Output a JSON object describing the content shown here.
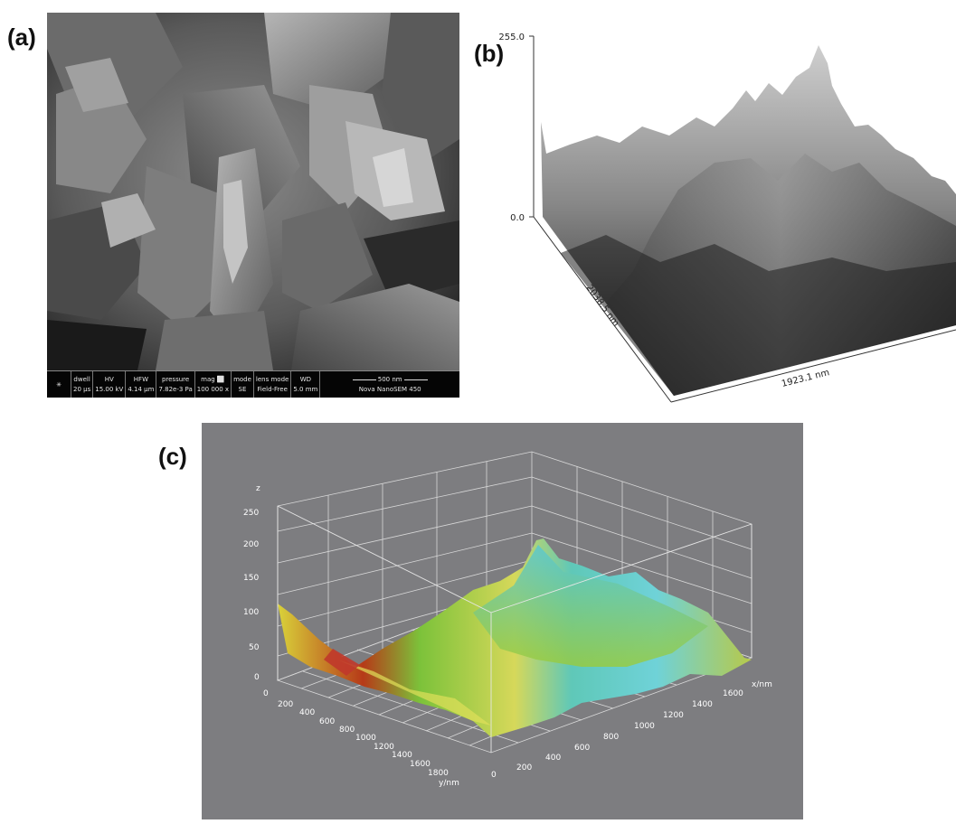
{
  "panels": {
    "a": {
      "label": "(a)"
    },
    "b": {
      "label": "(b)"
    },
    "c": {
      "label": "(c)"
    }
  },
  "sem_info": {
    "dwell_label": "dwell",
    "dwell_value": "20 µs",
    "hv_label": "HV",
    "hv_value": "15.00 kV",
    "hfw_label": "HFW",
    "hfw_value": "4.14 µm",
    "pressure_label": "pressure",
    "pressure_value": "7.82e-3 Pa",
    "mag_label": "mag ⬜",
    "mag_value": "100 000 x",
    "mode_label": "mode",
    "mode_value": "SE",
    "lens_label": "lens mode",
    "lens_value": "Field-Free",
    "wd_label": "WD",
    "wd_value": "5.0 mm",
    "scale_label": "500 nm",
    "instrument": "Nova NanoSEM 450"
  },
  "panel_b": {
    "z_max": "255.0",
    "z_min": "0.0",
    "y_axis_label": "2038.5 nm",
    "x_axis_label": "1923.1 nm"
  },
  "panel_c": {
    "z_label": "z",
    "z_ticks": [
      "0",
      "50",
      "100",
      "150",
      "200",
      "250"
    ],
    "y_ticks": [
      "0",
      "200",
      "400",
      "600",
      "800",
      "1000",
      "1200",
      "1400",
      "1600",
      "1800"
    ],
    "y_label": "y/nm",
    "x_ticks": [
      "0",
      "200",
      "400",
      "600",
      "800",
      "1000",
      "1200",
      "1400",
      "1600"
    ],
    "x_label": "x/nm"
  }
}
